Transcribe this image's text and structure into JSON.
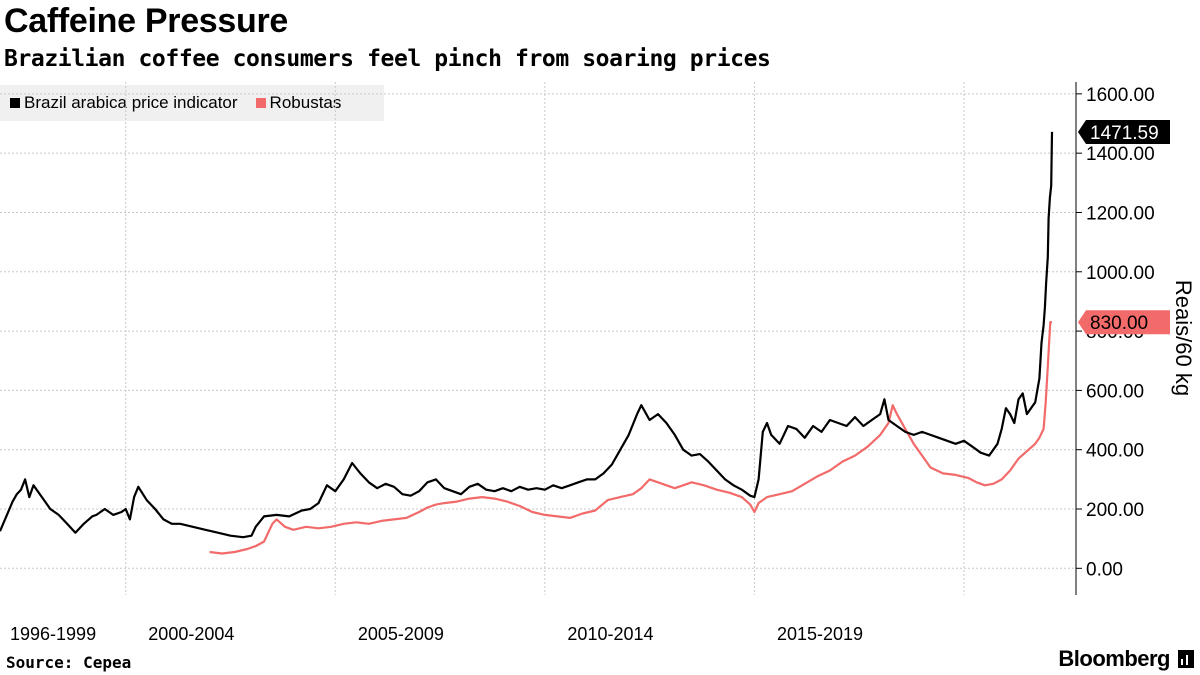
{
  "header": {
    "title": "Caffeine Pressure",
    "subtitle": "Brazilian coffee consumers feel pinch from soaring prices"
  },
  "footer": {
    "source": "Source: Cepea",
    "brand": "Bloomberg"
  },
  "colors": {
    "arabica": "#000000",
    "robustas": "#f26a6a",
    "grid": "#c8c8c8"
  },
  "chart_data": {
    "type": "line",
    "ylabel": "Reais/60 kg",
    "ylim": [
      -90,
      1640
    ],
    "xlim": [
      1996.7,
      2021.8
    ],
    "y_ticks": [
      "0.00",
      "200.00",
      "400.00",
      "600.00",
      "800.00",
      "1000.00",
      "1200.00",
      "1400.00",
      "1600.00"
    ],
    "x_period_labels": [
      {
        "label": "1996-1999",
        "x": 1996.7
      },
      {
        "label": "2000-2004",
        "x": 2000
      },
      {
        "label": "2005-2009",
        "x": 2005
      },
      {
        "label": "2010-2014",
        "x": 2010
      },
      {
        "label": "2015-2019",
        "x": 2015
      }
    ],
    "x_gridlines": [
      1999.7,
      2004.7,
      2009.7,
      2014.7,
      2019.7
    ],
    "legend_position": "top-left",
    "series": [
      {
        "name": "Brazil arabica price indicator",
        "last_value_label": "1471.59",
        "points": [
          [
            1996.7,
            125
          ],
          [
            1997.0,
            225
          ],
          [
            1997.1,
            250
          ],
          [
            1997.2,
            265
          ],
          [
            1997.3,
            300
          ],
          [
            1997.4,
            240
          ],
          [
            1997.5,
            280
          ],
          [
            1997.7,
            240
          ],
          [
            1997.9,
            200
          ],
          [
            1998.1,
            180
          ],
          [
            1998.3,
            150
          ],
          [
            1998.5,
            120
          ],
          [
            1998.7,
            150
          ],
          [
            1998.9,
            175
          ],
          [
            1999.0,
            180
          ],
          [
            1999.2,
            200
          ],
          [
            1999.4,
            180
          ],
          [
            1999.6,
            190
          ],
          [
            1999.7,
            200
          ],
          [
            1999.8,
            165
          ],
          [
            1999.9,
            240
          ],
          [
            2000.0,
            275
          ],
          [
            2000.2,
            230
          ],
          [
            2000.4,
            200
          ],
          [
            2000.6,
            165
          ],
          [
            2000.8,
            150
          ],
          [
            2001.0,
            150
          ],
          [
            2001.3,
            140
          ],
          [
            2001.6,
            130
          ],
          [
            2001.9,
            120
          ],
          [
            2002.2,
            110
          ],
          [
            2002.5,
            105
          ],
          [
            2002.7,
            110
          ],
          [
            2002.8,
            140
          ],
          [
            2003.0,
            175
          ],
          [
            2003.3,
            180
          ],
          [
            2003.6,
            175
          ],
          [
            2003.9,
            195
          ],
          [
            2004.1,
            200
          ],
          [
            2004.3,
            220
          ],
          [
            2004.5,
            280
          ],
          [
            2004.7,
            260
          ],
          [
            2004.9,
            300
          ],
          [
            2005.1,
            355
          ],
          [
            2005.3,
            320
          ],
          [
            2005.5,
            290
          ],
          [
            2005.7,
            270
          ],
          [
            2005.9,
            285
          ],
          [
            2006.1,
            275
          ],
          [
            2006.3,
            250
          ],
          [
            2006.5,
            245
          ],
          [
            2006.7,
            260
          ],
          [
            2006.9,
            290
          ],
          [
            2007.1,
            300
          ],
          [
            2007.3,
            270
          ],
          [
            2007.5,
            260
          ],
          [
            2007.7,
            250
          ],
          [
            2007.9,
            275
          ],
          [
            2008.1,
            285
          ],
          [
            2008.3,
            265
          ],
          [
            2008.5,
            260
          ],
          [
            2008.7,
            270
          ],
          [
            2008.9,
            260
          ],
          [
            2009.1,
            275
          ],
          [
            2009.3,
            265
          ],
          [
            2009.5,
            270
          ],
          [
            2009.7,
            265
          ],
          [
            2009.9,
            280
          ],
          [
            2010.1,
            270
          ],
          [
            2010.3,
            280
          ],
          [
            2010.5,
            290
          ],
          [
            2010.7,
            300
          ],
          [
            2010.9,
            300
          ],
          [
            2011.1,
            320
          ],
          [
            2011.3,
            350
          ],
          [
            2011.5,
            400
          ],
          [
            2011.7,
            450
          ],
          [
            2011.9,
            520
          ],
          [
            2012.0,
            550
          ],
          [
            2012.2,
            500
          ],
          [
            2012.4,
            520
          ],
          [
            2012.6,
            490
          ],
          [
            2012.8,
            450
          ],
          [
            2013.0,
            400
          ],
          [
            2013.2,
            380
          ],
          [
            2013.4,
            385
          ],
          [
            2013.6,
            360
          ],
          [
            2013.8,
            330
          ],
          [
            2014.0,
            300
          ],
          [
            2014.2,
            280
          ],
          [
            2014.4,
            265
          ],
          [
            2014.6,
            245
          ],
          [
            2014.7,
            240
          ],
          [
            2014.8,
            300
          ],
          [
            2014.9,
            460
          ],
          [
            2015.0,
            490
          ],
          [
            2015.1,
            450
          ],
          [
            2015.3,
            420
          ],
          [
            2015.5,
            480
          ],
          [
            2015.7,
            470
          ],
          [
            2015.9,
            440
          ],
          [
            2016.1,
            480
          ],
          [
            2016.3,
            460
          ],
          [
            2016.5,
            500
          ],
          [
            2016.7,
            490
          ],
          [
            2016.9,
            480
          ],
          [
            2017.1,
            510
          ],
          [
            2017.3,
            480
          ],
          [
            2017.5,
            500
          ],
          [
            2017.7,
            520
          ],
          [
            2017.8,
            570
          ],
          [
            2017.9,
            500
          ],
          [
            2018.1,
            480
          ],
          [
            2018.3,
            460
          ],
          [
            2018.5,
            450
          ],
          [
            2018.7,
            460
          ],
          [
            2018.9,
            450
          ],
          [
            2019.1,
            440
          ],
          [
            2019.3,
            430
          ],
          [
            2019.5,
            420
          ],
          [
            2019.7,
            430
          ],
          [
            2019.9,
            410
          ],
          [
            2020.1,
            390
          ],
          [
            2020.3,
            380
          ],
          [
            2020.5,
            420
          ],
          [
            2020.6,
            470
          ],
          [
            2020.7,
            540
          ],
          [
            2020.8,
            520
          ],
          [
            2020.9,
            490
          ],
          [
            2021.0,
            570
          ],
          [
            2021.1,
            590
          ],
          [
            2021.2,
            520
          ],
          [
            2021.3,
            540
          ],
          [
            2021.4,
            560
          ],
          [
            2021.5,
            640
          ],
          [
            2021.55,
            760
          ],
          [
            2021.6,
            820
          ],
          [
            2021.63,
            880
          ],
          [
            2021.66,
            960
          ],
          [
            2021.7,
            1050
          ],
          [
            2021.72,
            1180
          ],
          [
            2021.75,
            1250
          ],
          [
            2021.78,
            1290
          ],
          [
            2021.8,
            1471.59
          ]
        ]
      },
      {
        "name": "Robustas",
        "last_value_label": "830.00",
        "points": [
          [
            2001.7,
            55
          ],
          [
            2002.0,
            50
          ],
          [
            2002.3,
            55
          ],
          [
            2002.6,
            65
          ],
          [
            2002.8,
            75
          ],
          [
            2003.0,
            90
          ],
          [
            2003.1,
            120
          ],
          [
            2003.2,
            150
          ],
          [
            2003.3,
            165
          ],
          [
            2003.5,
            140
          ],
          [
            2003.7,
            130
          ],
          [
            2004.0,
            140
          ],
          [
            2004.3,
            135
          ],
          [
            2004.6,
            140
          ],
          [
            2004.9,
            150
          ],
          [
            2005.2,
            155
          ],
          [
            2005.5,
            150
          ],
          [
            2005.8,
            160
          ],
          [
            2006.1,
            165
          ],
          [
            2006.4,
            170
          ],
          [
            2006.7,
            190
          ],
          [
            2006.9,
            205
          ],
          [
            2007.1,
            215
          ],
          [
            2007.3,
            220
          ],
          [
            2007.6,
            225
          ],
          [
            2007.9,
            235
          ],
          [
            2008.2,
            240
          ],
          [
            2008.5,
            235
          ],
          [
            2008.8,
            225
          ],
          [
            2009.1,
            210
          ],
          [
            2009.4,
            190
          ],
          [
            2009.7,
            180
          ],
          [
            2010.0,
            175
          ],
          [
            2010.3,
            170
          ],
          [
            2010.6,
            185
          ],
          [
            2010.9,
            195
          ],
          [
            2011.2,
            230
          ],
          [
            2011.5,
            240
          ],
          [
            2011.8,
            250
          ],
          [
            2012.0,
            270
          ],
          [
            2012.2,
            300
          ],
          [
            2012.4,
            290
          ],
          [
            2012.6,
            280
          ],
          [
            2012.8,
            270
          ],
          [
            2013.0,
            280
          ],
          [
            2013.2,
            290
          ],
          [
            2013.5,
            280
          ],
          [
            2013.8,
            265
          ],
          [
            2014.1,
            255
          ],
          [
            2014.4,
            240
          ],
          [
            2014.6,
            215
          ],
          [
            2014.7,
            190
          ],
          [
            2014.8,
            220
          ],
          [
            2015.0,
            240
          ],
          [
            2015.3,
            250
          ],
          [
            2015.6,
            260
          ],
          [
            2015.9,
            285
          ],
          [
            2016.2,
            310
          ],
          [
            2016.5,
            330
          ],
          [
            2016.8,
            360
          ],
          [
            2017.1,
            380
          ],
          [
            2017.4,
            410
          ],
          [
            2017.7,
            450
          ],
          [
            2017.9,
            490
          ],
          [
            2018.0,
            550
          ],
          [
            2018.1,
            520
          ],
          [
            2018.3,
            470
          ],
          [
            2018.5,
            420
          ],
          [
            2018.7,
            380
          ],
          [
            2018.9,
            340
          ],
          [
            2019.2,
            320
          ],
          [
            2019.5,
            315
          ],
          [
            2019.8,
            305
          ],
          [
            2020.0,
            290
          ],
          [
            2020.2,
            280
          ],
          [
            2020.4,
            285
          ],
          [
            2020.6,
            300
          ],
          [
            2020.8,
            330
          ],
          [
            2021.0,
            370
          ],
          [
            2021.2,
            395
          ],
          [
            2021.4,
            420
          ],
          [
            2021.5,
            440
          ],
          [
            2021.6,
            470
          ],
          [
            2021.65,
            560
          ],
          [
            2021.7,
            680
          ],
          [
            2021.73,
            760
          ],
          [
            2021.76,
            830
          ],
          [
            2021.8,
            830
          ]
        ]
      }
    ]
  }
}
